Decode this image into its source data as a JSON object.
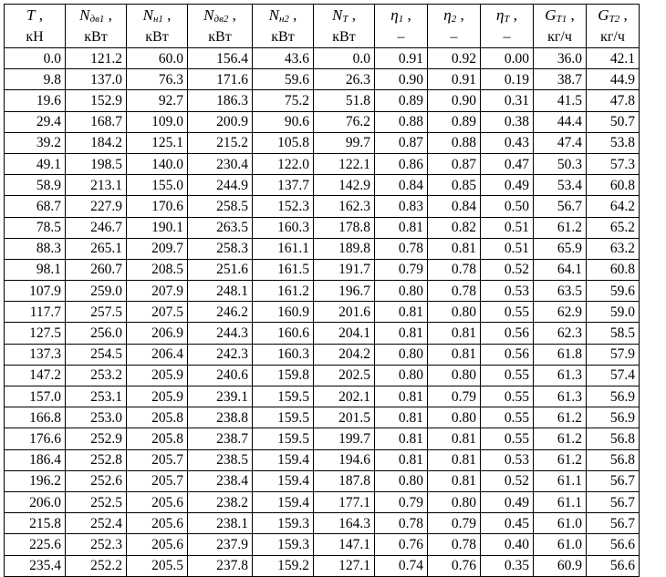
{
  "table": {
    "columns": [
      {
        "key": "T",
        "base": "T",
        "sub": "",
        "unit": "кН"
      },
      {
        "key": "N_dv1",
        "base": "N",
        "sub": "дв1",
        "unit": "кВт"
      },
      {
        "key": "N_n1",
        "base": "N",
        "sub": "н1",
        "unit": "кВт"
      },
      {
        "key": "N_dv2",
        "base": "N",
        "sub": "дв2",
        "unit": "кВт"
      },
      {
        "key": "N_n2",
        "base": "N",
        "sub": "н2",
        "unit": "кВт"
      },
      {
        "key": "N_T",
        "base": "N",
        "sub": "T",
        "unit": "кВт"
      },
      {
        "key": "eta1",
        "base": "η",
        "sub": "1",
        "unit": "–"
      },
      {
        "key": "eta2",
        "base": "η",
        "sub": "2",
        "unit": "–"
      },
      {
        "key": "eta_T",
        "base": "η",
        "sub": "T",
        "unit": "–"
      },
      {
        "key": "G_T1",
        "base": "G",
        "sub": "T1",
        "unit": "кг/ч"
      },
      {
        "key": "G_T2",
        "base": "G",
        "sub": "T2",
        "unit": "кг/ч"
      }
    ],
    "rows": [
      [
        "0.0",
        "121.2",
        "60.0",
        "156.4",
        "43.6",
        "0.0",
        "0.91",
        "0.92",
        "0.00",
        "36.0",
        "42.1"
      ],
      [
        "9.8",
        "137.0",
        "76.3",
        "171.6",
        "59.6",
        "26.3",
        "0.90",
        "0.91",
        "0.19",
        "38.7",
        "44.9"
      ],
      [
        "19.6",
        "152.9",
        "92.7",
        "186.3",
        "75.2",
        "51.8",
        "0.89",
        "0.90",
        "0.31",
        "41.5",
        "47.8"
      ],
      [
        "29.4",
        "168.7",
        "109.0",
        "200.9",
        "90.6",
        "76.2",
        "0.88",
        "0.89",
        "0.38",
        "44.4",
        "50.7"
      ],
      [
        "39.2",
        "184.2",
        "125.1",
        "215.2",
        "105.8",
        "99.7",
        "0.87",
        "0.88",
        "0.43",
        "47.4",
        "53.8"
      ],
      [
        "49.1",
        "198.5",
        "140.0",
        "230.4",
        "122.0",
        "122.1",
        "0.86",
        "0.87",
        "0.47",
        "50.3",
        "57.3"
      ],
      [
        "58.9",
        "213.1",
        "155.0",
        "244.9",
        "137.7",
        "142.9",
        "0.84",
        "0.85",
        "0.49",
        "53.4",
        "60.8"
      ],
      [
        "68.7",
        "227.9",
        "170.6",
        "258.5",
        "152.3",
        "162.3",
        "0.83",
        "0.84",
        "0.50",
        "56.7",
        "64.2"
      ],
      [
        "78.5",
        "246.7",
        "190.1",
        "263.5",
        "160.3",
        "178.8",
        "0.81",
        "0.82",
        "0.51",
        "61.2",
        "65.2"
      ],
      [
        "88.3",
        "265.1",
        "209.7",
        "258.3",
        "161.1",
        "189.8",
        "0.78",
        "0.81",
        "0.51",
        "65.9",
        "63.2"
      ],
      [
        "98.1",
        "260.7",
        "208.5",
        "251.6",
        "161.5",
        "191.7",
        "0.79",
        "0.78",
        "0.52",
        "64.1",
        "60.8"
      ],
      [
        "107.9",
        "259.0",
        "207.9",
        "248.1",
        "161.2",
        "196.7",
        "0.80",
        "0.78",
        "0.53",
        "63.5",
        "59.6"
      ],
      [
        "117.7",
        "257.5",
        "207.5",
        "246.2",
        "160.9",
        "201.6",
        "0.81",
        "0.80",
        "0.55",
        "62.9",
        "59.0"
      ],
      [
        "127.5",
        "256.0",
        "206.9",
        "244.3",
        "160.6",
        "204.1",
        "0.81",
        "0.81",
        "0.56",
        "62.3",
        "58.5"
      ],
      [
        "137.3",
        "254.5",
        "206.4",
        "242.3",
        "160.3",
        "204.2",
        "0.80",
        "0.81",
        "0.56",
        "61.8",
        "57.9"
      ],
      [
        "147.2",
        "253.2",
        "205.9",
        "240.6",
        "159.8",
        "202.5",
        "0.80",
        "0.80",
        "0.55",
        "61.3",
        "57.4"
      ],
      [
        "157.0",
        "253.1",
        "205.9",
        "239.1",
        "159.5",
        "202.1",
        "0.81",
        "0.79",
        "0.55",
        "61.3",
        "56.9"
      ],
      [
        "166.8",
        "253.0",
        "205.8",
        "238.8",
        "159.5",
        "201.5",
        "0.81",
        "0.80",
        "0.55",
        "61.2",
        "56.9"
      ],
      [
        "176.6",
        "252.9",
        "205.8",
        "238.7",
        "159.5",
        "199.7",
        "0.81",
        "0.81",
        "0.55",
        "61.2",
        "56.8"
      ],
      [
        "186.4",
        "252.8",
        "205.7",
        "238.5",
        "159.4",
        "194.6",
        "0.81",
        "0.81",
        "0.53",
        "61.2",
        "56.8"
      ],
      [
        "196.2",
        "252.6",
        "205.7",
        "238.4",
        "159.4",
        "187.8",
        "0.80",
        "0.81",
        "0.52",
        "61.1",
        "56.7"
      ],
      [
        "206.0",
        "252.5",
        "205.6",
        "238.2",
        "159.4",
        "177.1",
        "0.79",
        "0.80",
        "0.49",
        "61.1",
        "56.7"
      ],
      [
        "215.8",
        "252.4",
        "205.6",
        "238.1",
        "159.3",
        "164.3",
        "0.78",
        "0.79",
        "0.45",
        "61.0",
        "56.7"
      ],
      [
        "225.6",
        "252.3",
        "205.6",
        "237.9",
        "159.3",
        "147.1",
        "0.76",
        "0.78",
        "0.40",
        "61.0",
        "56.6"
      ],
      [
        "235.4",
        "252.2",
        "205.5",
        "237.8",
        "159.2",
        "127.1",
        "0.74",
        "0.76",
        "0.35",
        "60.9",
        "56.6"
      ]
    ]
  }
}
